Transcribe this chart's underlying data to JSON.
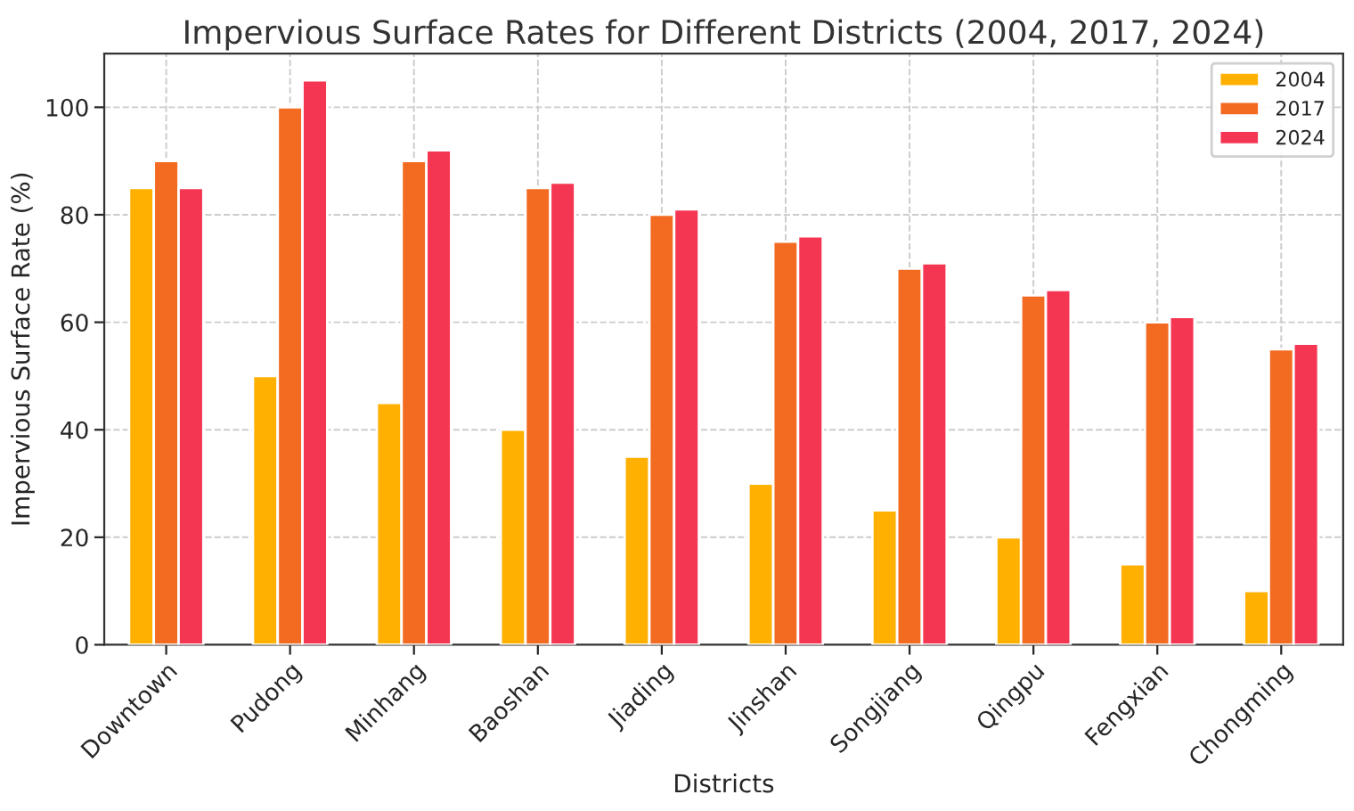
{
  "chart_data": {
    "type": "bar",
    "title": "Impervious Surface Rates for Different Districts (2004, 2017, 2024)",
    "xlabel": "Districts",
    "ylabel": "Impervious Surface Rate (%)",
    "categories": [
      "Downtown",
      "Pudong",
      "Minhang",
      "Baoshan",
      "Jiading",
      "Jinshan",
      "Songjiang",
      "Qingpu",
      "Fengxian",
      "Chongming"
    ],
    "series": [
      {
        "name": "2004",
        "color": "#ffb000",
        "values": [
          85,
          50,
          45,
          40,
          35,
          30,
          25,
          20,
          15,
          10
        ]
      },
      {
        "name": "2017",
        "color": "#f26b21",
        "values": [
          90,
          100,
          90,
          85,
          80,
          75,
          70,
          65,
          60,
          55
        ]
      },
      {
        "name": "2024",
        "color": "#f53653",
        "values": [
          85,
          105,
          92,
          86,
          81,
          76,
          71,
          66,
          61,
          56
        ]
      }
    ],
    "ylim": [
      0,
      110
    ],
    "yticks": [
      0,
      20,
      40,
      60,
      80,
      100
    ],
    "grid": true,
    "legend": "top right"
  }
}
